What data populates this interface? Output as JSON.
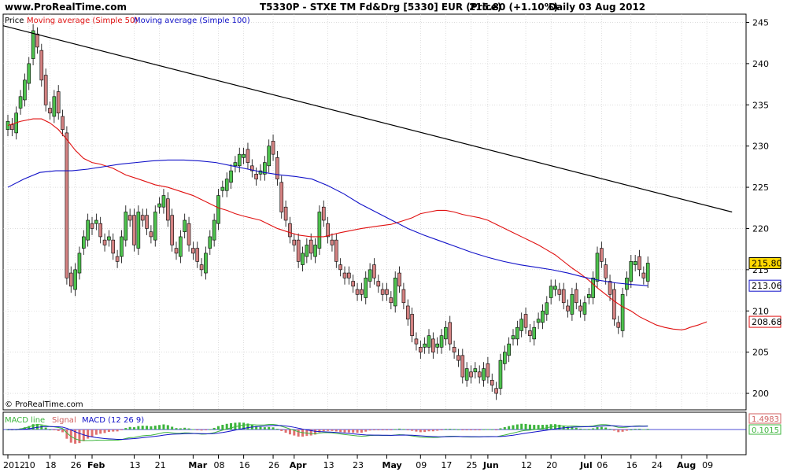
{
  "header": {
    "site": "www.ProRealTime.com",
    "title": "T5330P - STXE TM Fd&Drg [5330] EUR (Price)",
    "price": "215.80 (+1.10%)",
    "period": "Daily  03 Aug 2012",
    "copyright": "© ProRealTime.com"
  },
  "legend": {
    "price": "Price",
    "ma50": "Moving average (Simple 50)",
    "ma100": "Moving average (Simple 100)"
  },
  "macd": {
    "title_a": "MACD line",
    "title_b": "Signal",
    "title_c": "MACD (12 26 9)",
    "value_top": "1.4983",
    "value_bottom": "0.1015"
  },
  "colors": {
    "up": "#4ec24e",
    "down": "#d48282",
    "ma50": "#e01010",
    "ma100": "#1010c8",
    "trendline": "#000000",
    "grid": "#c8c8c8"
  },
  "chart_data": {
    "type": "candlestick",
    "ylim": [
      198,
      246
    ],
    "yticks": [
      200,
      205,
      210,
      215,
      220,
      225,
      230,
      235,
      240,
      245
    ],
    "x_tick_labels": [
      "2012",
      "10",
      "18",
      "26",
      "Feb",
      "13",
      "21",
      "Mar",
      "08",
      "16",
      "26",
      "Apr",
      "13",
      "23",
      "May",
      "09",
      "17",
      "25",
      "Jun",
      "12",
      "20",
      "Jul",
      "06",
      "16",
      "24",
      "Aug",
      "09"
    ],
    "x_tick_days": [
      0,
      5,
      10,
      16,
      20,
      30,
      36,
      44,
      50,
      56,
      63,
      68,
      76,
      83,
      90,
      98,
      104,
      110,
      114,
      123,
      129,
      137,
      141,
      148,
      154,
      160,
      166
    ],
    "last_values": {
      "price": 215.8,
      "ma100": 213.06,
      "ma50": 208.68
    },
    "close": [
      233,
      232,
      234,
      236,
      238,
      240,
      244,
      242,
      238,
      235,
      234,
      236,
      234,
      232,
      214,
      213,
      215,
      217,
      219,
      221,
      220,
      221,
      219,
      218,
      219,
      217,
      216,
      219,
      222,
      221,
      218,
      222,
      221,
      220,
      219,
      222,
      223,
      224,
      221,
      218,
      217,
      219,
      221,
      218,
      217,
      216,
      215,
      217,
      219,
      221,
      224,
      225,
      226,
      227,
      228,
      229,
      229,
      228,
      227,
      226,
      227,
      228,
      230,
      229,
      226,
      222,
      221,
      219,
      218,
      216,
      217,
      218,
      217,
      218,
      222,
      221,
      219,
      218,
      216,
      215,
      214,
      214,
      213,
      212,
      212,
      214,
      215,
      214,
      213,
      212,
      212,
      211,
      214,
      213,
      211,
      209,
      207,
      206,
      205,
      206,
      207,
      205,
      206,
      207,
      208,
      206,
      205,
      204,
      202,
      203,
      202,
      203,
      202,
      203,
      202,
      201,
      200,
      204,
      205,
      206,
      207,
      208,
      209,
      208,
      207,
      208,
      209,
      210,
      211,
      213,
      213,
      212,
      211,
      210,
      212,
      211,
      210,
      211,
      212,
      214,
      217,
      216,
      214,
      212,
      209,
      208,
      212,
      214,
      216,
      216,
      215,
      214,
      215.8
    ],
    "ma50": [
      232.5,
      233,
      233.3,
      233.3,
      232.8,
      232,
      230.8,
      229.5,
      228.5,
      228,
      227.8,
      227.3,
      226.5,
      226,
      225.3,
      225,
      224.5,
      224,
      223.5,
      223,
      222.5,
      222.2,
      221.8,
      221.5,
      221,
      220.5,
      220,
      219.5,
      219.2,
      219,
      219,
      219.5,
      220,
      220.3,
      220.5,
      220.8,
      221.3,
      221.8,
      222,
      222.2,
      222.2,
      222,
      221.7,
      221.5,
      221.3,
      221,
      220.5,
      220,
      219.5,
      219,
      218.5,
      218,
      217.4,
      216.8,
      216,
      215.2,
      214.5,
      213.7,
      212.8,
      212,
      211.2,
      210.5,
      210,
      209.3,
      208.8,
      208.3,
      208,
      207.8,
      207.7,
      207.8,
      208,
      208.3,
      208.68
    ],
    "ma50_days": [
      0,
      3,
      6,
      8,
      10,
      12,
      14,
      16,
      18,
      20,
      22,
      25,
      28,
      31,
      35,
      38,
      41,
      44,
      46,
      48,
      50,
      52,
      54,
      56,
      60,
      62,
      64,
      67,
      69,
      72,
      75,
      79,
      84,
      88,
      91,
      93,
      96,
      98,
      100,
      102,
      104,
      106,
      108,
      110,
      112,
      114,
      116,
      118,
      120,
      122,
      124,
      126,
      128,
      130,
      132,
      134,
      136,
      138,
      140,
      142,
      144,
      146,
      148,
      150,
      152,
      154,
      156,
      158,
      160,
      161,
      162,
      164,
      166
    ],
    "ma100": [
      225,
      226,
      226.8,
      227,
      227,
      227.2,
      227.5,
      227.8,
      228,
      228.2,
      228.3,
      228.3,
      228.2,
      228,
      227.6,
      227.2,
      226.8,
      226.5,
      226.3,
      226,
      225.2,
      224.2,
      223,
      222,
      221,
      220,
      219.2,
      218.5,
      217.8,
      217.1,
      216.5,
      216,
      215.6,
      215.3,
      215,
      214.6,
      214.1,
      213.7,
      213.4,
      213.2,
      213.06
    ]
  }
}
